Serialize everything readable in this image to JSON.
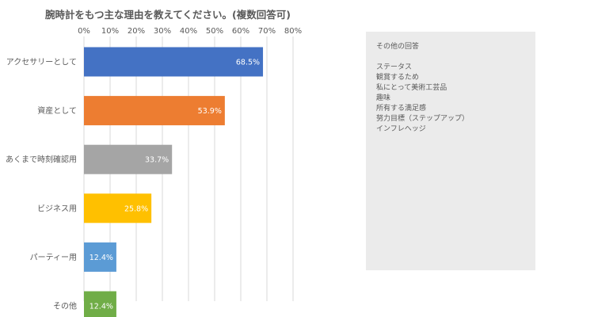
{
  "chart_data": {
    "type": "bar",
    "orientation": "horizontal",
    "title": "腕時計をもつ主な理由を教えてください。(複数回答可)",
    "categories": [
      "アクセサリーとして",
      "資産として",
      "あくまで時刻確認用",
      "ビジネス用",
      "パーティー用",
      "その他"
    ],
    "values": [
      68.5,
      53.9,
      33.7,
      25.8,
      12.4,
      12.4
    ],
    "data_labels": [
      "68.5%",
      "53.9%",
      "33.7%",
      "25.8%",
      "12.4%",
      "12.4%"
    ],
    "colors": [
      "#4472c4",
      "#ed7d31",
      "#a5a5a5",
      "#ffc000",
      "#5b9bd5",
      "#70ad47"
    ],
    "xlim": [
      0,
      80
    ],
    "xticks": [
      0,
      10,
      20,
      30,
      40,
      50,
      60,
      70,
      80
    ],
    "xtick_labels": [
      "0%",
      "10%",
      "20%",
      "30%",
      "40%",
      "50%",
      "60%",
      "70%",
      "80%"
    ],
    "xaxis_position": "top",
    "grid": true,
    "legend": "none"
  },
  "side_panel": {
    "title": "その他の回答",
    "items": [
      "ステータス",
      "観賞するため",
      "私にとって美術工芸品",
      "趣味",
      "所有する満足感",
      "努力目標（ステップアップ）",
      "インフレヘッジ"
    ]
  }
}
